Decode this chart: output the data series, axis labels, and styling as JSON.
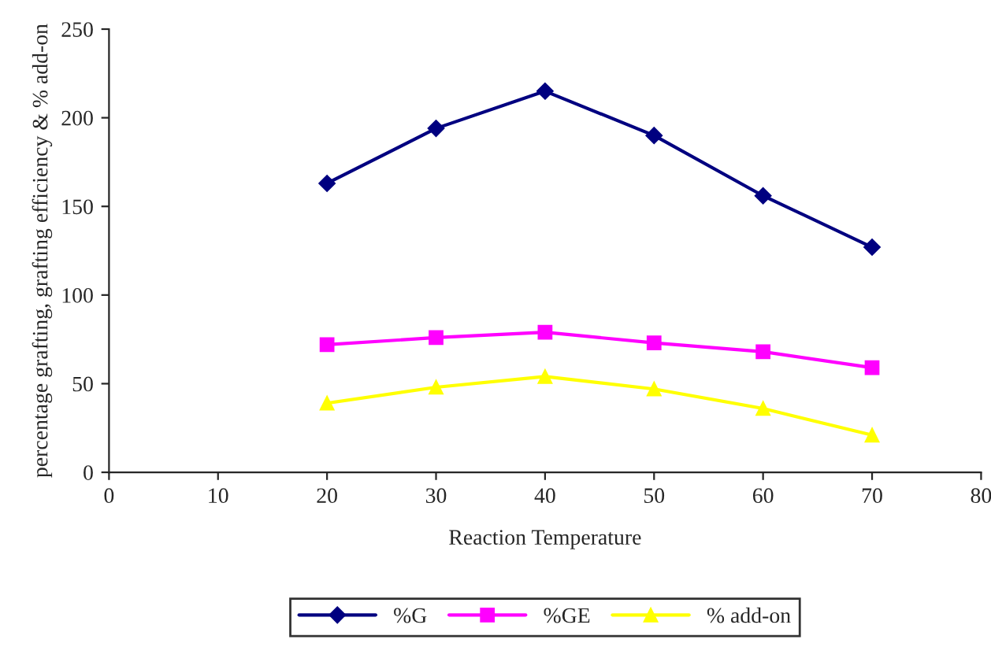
{
  "chart_data": {
    "type": "line",
    "xlabel": "Reaction Temperature",
    "ylabel": "percentage grafting, grafting efficiency & % add-on",
    "x": [
      20,
      30,
      40,
      50,
      60,
      70
    ],
    "series": [
      {
        "name": "%G",
        "color": "#000080",
        "marker": "diamond",
        "values": [
          163,
          194,
          215,
          190,
          156,
          127
        ]
      },
      {
        "name": "%GE",
        "color": "#ff00ff",
        "marker": "square",
        "values": [
          72,
          76,
          79,
          73,
          68,
          59
        ]
      },
      {
        "name": "% add-on",
        "color": "#ffff00",
        "marker": "triangle",
        "values": [
          39,
          48,
          54,
          47,
          36,
          21
        ]
      }
    ],
    "xlim": [
      0,
      80
    ],
    "xticks": [
      0,
      10,
      20,
      30,
      40,
      50,
      60,
      70,
      80
    ],
    "ylim": [
      0,
      250
    ],
    "yticks": [
      0,
      50,
      100,
      150,
      200,
      250
    ],
    "grid": false,
    "legend": "bottom"
  }
}
